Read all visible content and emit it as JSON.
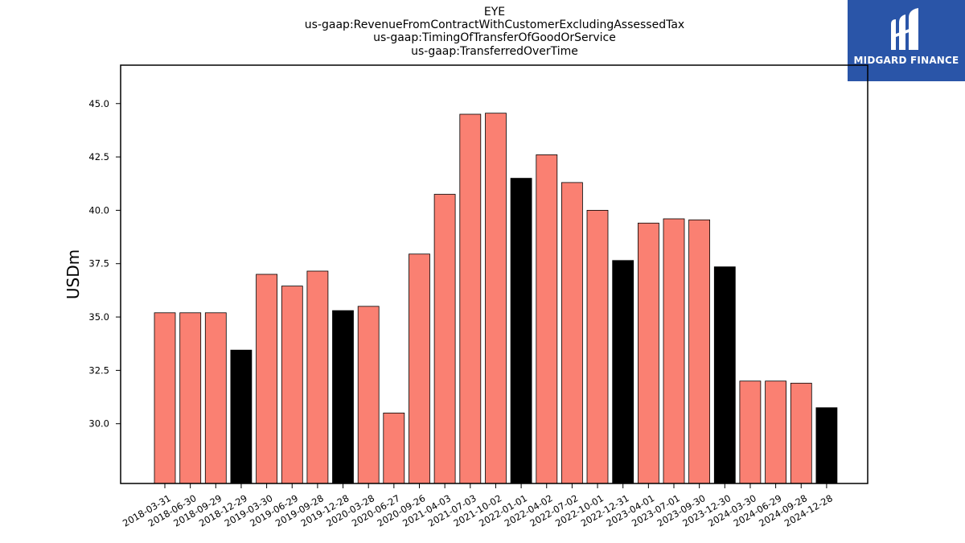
{
  "titles": {
    "line1": "EYE",
    "line2": "us-gaap:RevenueFromContractWithCustomerExcludingAssessedTax",
    "line3": "us-gaap:TimingOfTransferOfGoodOrService",
    "line4": "us-gaap:TransferredOverTime"
  },
  "logo": {
    "text": "MIDGARD FINANCE",
    "bg_color": "#2a55a8"
  },
  "chart_data": {
    "type": "bar",
    "title": "EYE us-gaap:RevenueFromContractWithCustomerExcludingAssessedTax us-gaap:TimingOfTransferOfGoodOrService us-gaap:TransferredOverTime",
    "xlabel": "",
    "ylabel": "USDm",
    "ylim": [
      27.2,
      46.8
    ],
    "yticks": [
      "30.0",
      "32.5",
      "35.0",
      "37.5",
      "40.0",
      "42.5",
      "45.0"
    ],
    "grid": false,
    "colors": {
      "default": "#fa8072",
      "highlight": "#000000"
    },
    "categories": [
      "2018-03-31",
      "2018-06-30",
      "2018-09-29",
      "2018-12-29",
      "2019-03-30",
      "2019-06-29",
      "2019-09-28",
      "2019-12-28",
      "2020-03-28",
      "2020-06-27",
      "2020-09-26",
      "2021-04-03",
      "2021-07-03",
      "2021-10-02",
      "2022-01-01",
      "2022-04-02",
      "2022-07-02",
      "2022-10-01",
      "2022-12-31",
      "2023-04-01",
      "2023-07-01",
      "2023-09-30",
      "2023-12-30",
      "2024-03-30",
      "2024-06-29",
      "2024-09-28",
      "2024-12-28"
    ],
    "values": [
      35.2,
      35.2,
      35.2,
      33.45,
      37.0,
      36.45,
      37.15,
      35.3,
      35.5,
      30.5,
      37.95,
      40.75,
      44.5,
      44.55,
      41.5,
      42.6,
      41.3,
      40.0,
      37.65,
      39.4,
      39.6,
      39.55,
      37.35,
      32.0,
      32.0,
      31.9,
      30.75
    ],
    "highlight": [
      false,
      false,
      false,
      true,
      false,
      false,
      false,
      true,
      false,
      false,
      false,
      false,
      false,
      false,
      true,
      false,
      false,
      false,
      true,
      false,
      false,
      false,
      true,
      false,
      false,
      false,
      true
    ]
  }
}
